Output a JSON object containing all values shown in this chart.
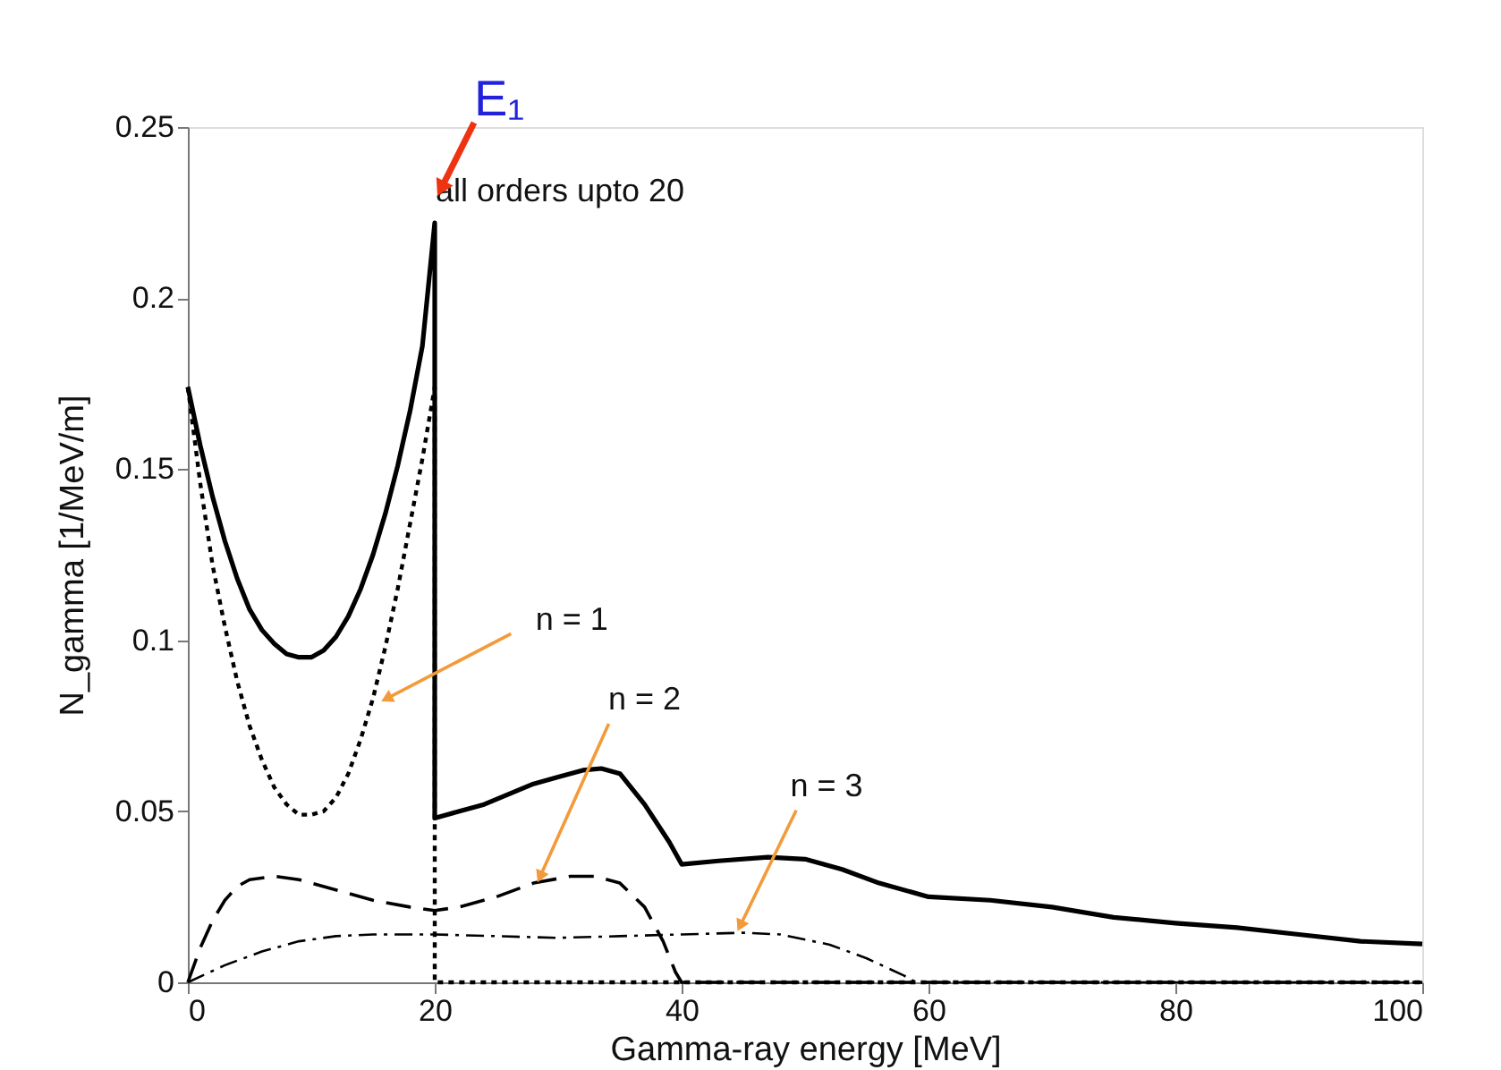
{
  "chart_data": {
    "type": "line",
    "xlabel": "Gamma-ray energy [MeV]",
    "ylabel": "N_gamma [1/MeV/m]",
    "xlim": [
      0,
      100
    ],
    "xticks": [
      0,
      20,
      40,
      60,
      80,
      100
    ],
    "ylim": [
      0,
      0.25
    ],
    "yticks": [
      0,
      0.05,
      0.1,
      0.15,
      0.2,
      0.25
    ],
    "grid": false,
    "marker": "none",
    "series": [
      {
        "color": "#000000",
        "line_style": "solid",
        "x": [
          0,
          1,
          2,
          3,
          4,
          5,
          6,
          7,
          8,
          9,
          10,
          11,
          12,
          13,
          14,
          15,
          16,
          17,
          18,
          19,
          20,
          20,
          22,
          24,
          26,
          28,
          30,
          32,
          33.5,
          35,
          37,
          39,
          40,
          43,
          47,
          50,
          53,
          56,
          60,
          65,
          70,
          75,
          80,
          85,
          90,
          95,
          100
        ],
        "values": [
          0.174,
          0.157,
          0.142,
          0.129,
          0.118,
          0.109,
          0.103,
          0.099,
          0.096,
          0.095,
          0.095,
          0.097,
          0.101,
          0.107,
          0.115,
          0.125,
          0.137,
          0.151,
          0.167,
          0.186,
          0.222,
          0.048,
          0.05,
          0.052,
          0.055,
          0.058,
          0.06,
          0.062,
          0.0625,
          0.061,
          0.052,
          0.041,
          0.0345,
          0.0355,
          0.0366,
          0.036,
          0.033,
          0.029,
          0.025,
          0.024,
          0.022,
          0.019,
          0.0173,
          0.016,
          0.014,
          0.012,
          0.0112
        ]
      },
      {
        "color": "#000000",
        "line_style": "dotted",
        "x": [
          0,
          1,
          2,
          3,
          4,
          5,
          6,
          7,
          8,
          9,
          10,
          11,
          12,
          13,
          14,
          15,
          16,
          17,
          18,
          19,
          20,
          20,
          100
        ],
        "values": [
          0.174,
          0.146,
          0.122,
          0.104,
          0.088,
          0.075,
          0.065,
          0.057,
          0.052,
          0.049,
          0.049,
          0.05,
          0.054,
          0.061,
          0.071,
          0.083,
          0.098,
          0.115,
          0.134,
          0.153,
          0.174,
          0,
          0
        ]
      },
      {
        "color": "#000000",
        "line_style": "dashed",
        "x": [
          0,
          1,
          2,
          3,
          4,
          5,
          7,
          9,
          12,
          15,
          18,
          20,
          22,
          25,
          28,
          31,
          33,
          35,
          37,
          38.5,
          39.5,
          40,
          100
        ],
        "values": [
          0,
          0.01,
          0.018,
          0.024,
          0.028,
          0.03,
          0.031,
          0.03,
          0.027,
          0.024,
          0.022,
          0.021,
          0.022,
          0.025,
          0.029,
          0.031,
          0.031,
          0.029,
          0.022,
          0.012,
          0.003,
          0,
          0
        ]
      },
      {
        "color": "#000000",
        "line_style": "dashdot",
        "x": [
          0,
          3,
          6,
          9,
          12,
          15,
          20,
          25,
          30,
          35,
          40,
          45,
          48,
          52,
          55,
          58,
          59,
          100
        ],
        "values": [
          0,
          0.005,
          0.009,
          0.012,
          0.0135,
          0.014,
          0.014,
          0.0135,
          0.013,
          0.0135,
          0.014,
          0.0145,
          0.014,
          0.011,
          0.007,
          0.002,
          0,
          0
        ]
      }
    ],
    "annotations": [
      {
        "text": "all orders upto 20",
        "x": 20,
        "y": 0.222
      },
      "E₁",
      {
        "text": "n = 1",
        "x": 15.6,
        "y": 0.082
      },
      {
        "text": "n = 2",
        "x": 28.3,
        "y": 0.029
      },
      {
        "text": "n = 3",
        "x": 44.5,
        "y": 0.0147
      }
    ]
  }
}
